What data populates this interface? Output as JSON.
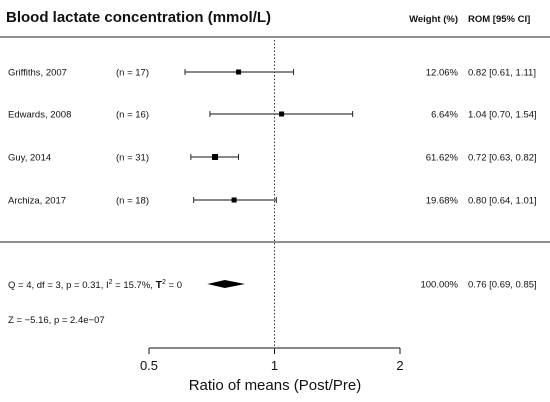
{
  "chart_data": {
    "type": "forest",
    "title": "Blood lactate concentration (mmol/L)",
    "xlabel": "Ratio of means (Post/Pre)",
    "scale": "log",
    "xlim": [
      0.5,
      2
    ],
    "xticks": [
      "0.5",
      "1",
      "2"
    ],
    "reference_line": 1,
    "columns": {
      "weight": "Weight (%)",
      "effect": "ROM [95% CI]"
    },
    "studies": [
      {
        "label": "Griffiths, 2007",
        "n": "(n = 17)",
        "est": 0.82,
        "lo": 0.61,
        "hi": 1.11,
        "weight": "12.06%",
        "ci_text": "0.82 [0.61, 1.11]"
      },
      {
        "label": "Edwards, 2008",
        "n": "(n = 16)",
        "est": 1.04,
        "lo": 0.7,
        "hi": 1.54,
        "weight": "6.64%",
        "ci_text": "1.04 [0.70, 1.54]"
      },
      {
        "label": "Guy, 2014",
        "n": "(n = 31)",
        "est": 0.72,
        "lo": 0.63,
        "hi": 0.82,
        "weight": "61.62%",
        "ci_text": "0.72 [0.63, 0.82]"
      },
      {
        "label": "Archiza, 2017",
        "n": "(n = 18)",
        "est": 0.8,
        "lo": 0.64,
        "hi": 1.01,
        "weight": "19.68%",
        "ci_text": "0.80 [0.64, 1.01]"
      }
    ],
    "summary": {
      "est": 0.76,
      "lo": 0.69,
      "hi": 0.85,
      "weight": "100.00%",
      "ci_text": "0.76 [0.69, 0.85]",
      "het_text_pre": "Q = 4, df = 3, p = 0.31, I",
      "het_i2_sup": "2",
      "het_text_mid": " = 15.7%, ",
      "het_tau": "T",
      "het_tau_sup": "2",
      "het_text_post": " =  0",
      "z_text": "Z = −5.16, p = 2.4e−07"
    }
  }
}
